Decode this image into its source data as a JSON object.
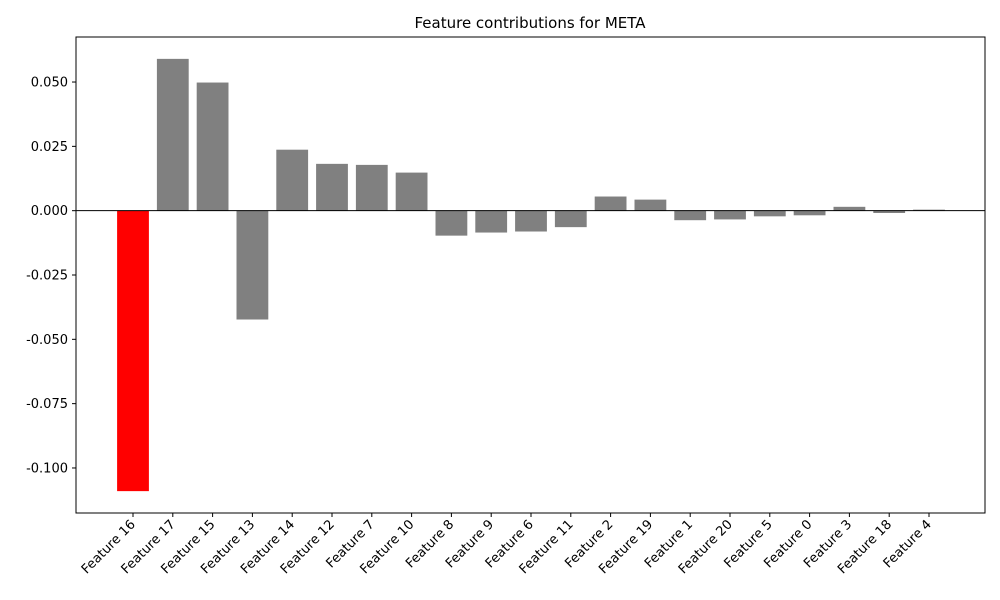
{
  "chart_data": {
    "type": "bar",
    "title": "Feature contributions for META",
    "xlabel": "",
    "ylabel": "",
    "ylim": [
      -0.1175,
      0.0675
    ],
    "yticks": [
      "0.050",
      "0.025",
      "0.000",
      "-0.025",
      "-0.050",
      "-0.075",
      "-0.100"
    ],
    "ytick_values": [
      0.05,
      0.025,
      0.0,
      -0.025,
      -0.05,
      -0.075,
      -0.1
    ],
    "categories": [
      "Feature 16",
      "Feature 17",
      "Feature 15",
      "Feature 13",
      "Feature 14",
      "Feature 12",
      "Feature 7",
      "Feature 10",
      "Feature 8",
      "Feature 9",
      "Feature 6",
      "Feature 11",
      "Feature 2",
      "Feature 19",
      "Feature 1",
      "Feature 20",
      "Feature 5",
      "Feature 0",
      "Feature 3",
      "Feature 18",
      "Feature 4"
    ],
    "values": [
      -0.109,
      0.059,
      0.0498,
      -0.0423,
      0.0237,
      0.0182,
      0.0178,
      0.0148,
      -0.0097,
      -0.0085,
      -0.0081,
      -0.0064,
      0.0055,
      0.0043,
      -0.0037,
      -0.0034,
      -0.0022,
      -0.0018,
      0.0015,
      -0.0009,
      0.0004
    ],
    "bar_colors": [
      "#ff0000",
      "#808080",
      "#808080",
      "#808080",
      "#808080",
      "#808080",
      "#808080",
      "#808080",
      "#808080",
      "#808080",
      "#808080",
      "#808080",
      "#808080",
      "#808080",
      "#808080",
      "#808080",
      "#808080",
      "#808080",
      "#808080",
      "#808080",
      "#808080"
    ],
    "highlight_color": "#ff0000",
    "default_color": "#808080",
    "zero_line": true,
    "grid": false
  }
}
